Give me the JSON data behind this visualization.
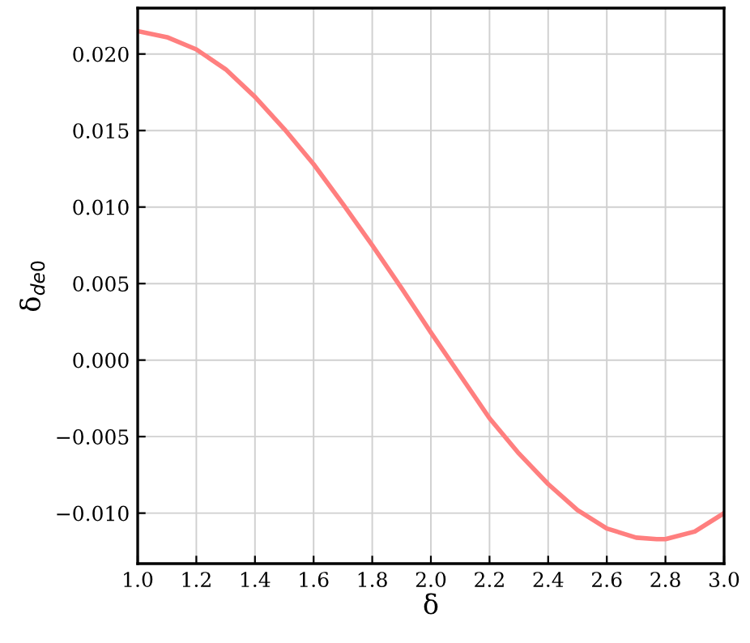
{
  "chart_data": {
    "type": "line",
    "xlabel": "δ",
    "ylabel": "δ$_{de0}$",
    "series": [
      {
        "color": "#ff7f7f",
        "x": [
          1.0,
          1.1,
          1.2,
          1.3,
          1.4,
          1.5,
          1.6,
          1.7,
          1.8,
          1.9,
          2.0,
          2.1,
          2.2,
          2.3,
          2.4,
          2.5,
          2.6,
          2.7,
          2.77,
          2.8,
          2.9,
          3.0
        ],
        "values": [
          0.0215,
          0.0211,
          0.0203,
          0.019,
          0.0172,
          0.0151,
          0.0128,
          0.0102,
          0.0075,
          0.0047,
          0.0018,
          -0.001,
          -0.0038,
          -0.0061,
          -0.0081,
          -0.0098,
          -0.011,
          -0.0116,
          -0.0117,
          -0.0117,
          -0.0112,
          -0.01
        ]
      }
    ],
    "xlim": [
      1.0,
      3.0
    ],
    "ylim": [
      -0.0133,
      0.023
    ],
    "xticks": [
      {
        "value": 1.0,
        "label": "1.0"
      },
      1.2,
      1.4,
      1.6,
      1.8,
      {
        "value": 2.0,
        "label": "2.0"
      },
      2.2,
      2.4,
      2.6,
      2.8,
      {
        "value": 3.0,
        "label": "3.0"
      }
    ],
    "yticks": [
      {
        "value": -0.01,
        "label": "−0.010"
      },
      {
        "value": -0.005,
        "label": "−0.005"
      },
      {
        "value": 0.0,
        "label": "0.000"
      },
      {
        "value": 0.005,
        "label": "0.005"
      },
      {
        "value": 0.01,
        "label": "0.010"
      },
      {
        "value": 0.015,
        "label": "0.015"
      },
      {
        "value": 0.02,
        "label": "0.020"
      }
    ],
    "grid": true,
    "marker": "none",
    "line_style": "solid",
    "legend": false
  }
}
